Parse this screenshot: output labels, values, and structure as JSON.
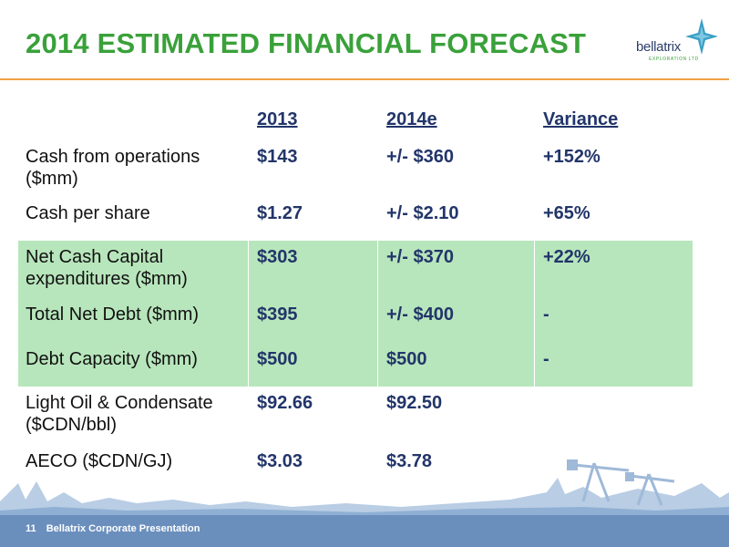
{
  "title": "2014 ESTIMATED FINANCIAL FORECAST",
  "logo": {
    "name": "bellatrix",
    "sub": "EXPLORATION LTD"
  },
  "headers": {
    "c2013": "2013",
    "c2014": "2014e",
    "variance": "Variance"
  },
  "rows": [
    {
      "label": "Cash from operations ($mm)",
      "v2013": "$143",
      "v2014": "+/- $360",
      "variance": "+152%"
    },
    {
      "label": "Cash per share",
      "v2013": "$1.27",
      "v2014": "+/- $2.10",
      "variance": "+65%"
    },
    {
      "label": "Net Cash Capital expenditures ($mm)",
      "v2013": "$303",
      "v2014": "+/- $370",
      "variance": "+22%"
    },
    {
      "label": "Total Net Debt ($mm)",
      "v2013": "$395",
      "v2014": "+/- $400",
      "variance": "-"
    },
    {
      "label": "Debt Capacity ($mm)",
      "v2013": "$500",
      "v2014": "$500",
      "variance": "-"
    },
    {
      "label": "Light Oil & Condensate ($CDN/bbl)",
      "v2013": "$92.66",
      "v2014": "$92.50",
      "variance": ""
    },
    {
      "label": "AECO ($CDN/GJ)",
      "v2013": "$3.03",
      "v2014": "$3.78",
      "variance": ""
    }
  ],
  "footer": {
    "page": "11",
    "text": "Bellatrix Corporate Presentation"
  },
  "colors": {
    "title": "#3aa13a",
    "values": "#22356a",
    "band": "#b8e6bc",
    "footer": "#6b8fbd",
    "rule": "#f0a045"
  }
}
